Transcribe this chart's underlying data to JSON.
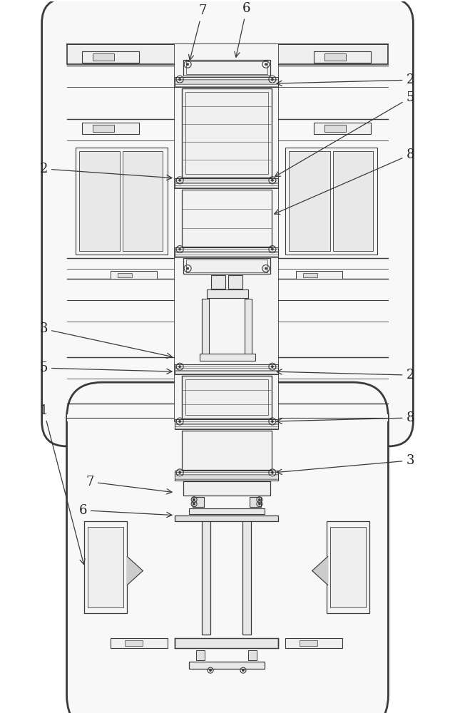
{
  "bg_color": "#ffffff",
  "lc": "#3a3a3a",
  "lc_thin": "#666666",
  "fig_width": 6.38,
  "fig_height": 10.0,
  "annotation_color": "#222222"
}
